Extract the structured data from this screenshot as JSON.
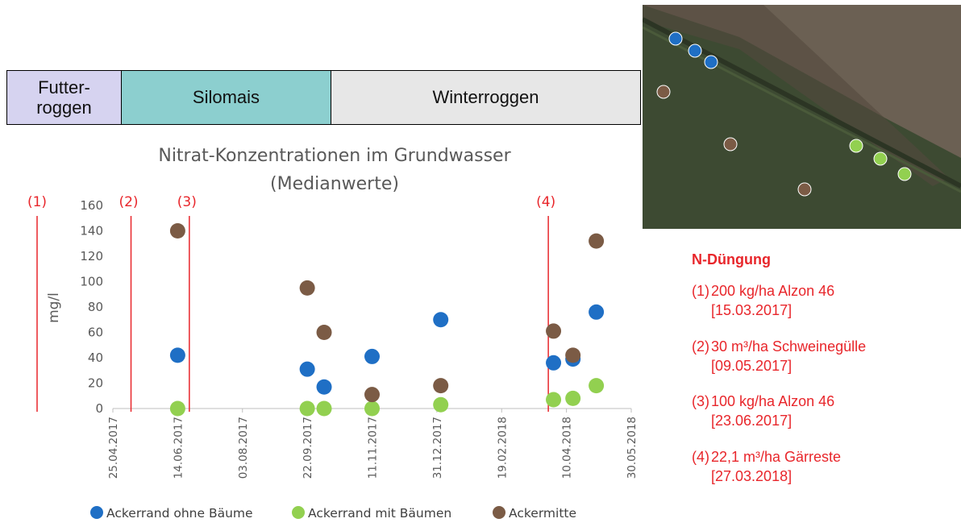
{
  "crops": [
    {
      "label": "Futter-\nroggen"
    },
    {
      "label": "Silomais"
    },
    {
      "label": "Winterroggen"
    }
  ],
  "chart_data": {
    "type": "scatter",
    "title": "Nitrat-Konzentrationen im Grundwasser\n(Medianwerte)",
    "title_lines": [
      "Nitrat-Konzentrationen im Grundwasser",
      "(Medianwerte)"
    ],
    "ylabel": "mg/l",
    "ylim": [
      0,
      160
    ],
    "yticks": [
      0,
      20,
      40,
      60,
      80,
      100,
      120,
      140,
      160
    ],
    "xlim": [
      "2017-04-25",
      "2018-05-30"
    ],
    "xticks": [
      "25.04.2017",
      "14.06.2017",
      "03.08.2017",
      "22.09.2017",
      "11.11.2017",
      "31.12.2017",
      "19.02.2018",
      "10.04.2018",
      "30.05.2018"
    ],
    "grid": false,
    "legend_position": "bottom",
    "series": [
      {
        "name": "Ackerrand ohne Bäume",
        "color": "#1f6fc5",
        "points": [
          [
            "2017-06-14",
            42
          ],
          [
            "2017-09-22",
            31
          ],
          [
            "2017-10-05",
            17
          ],
          [
            "2017-11-11",
            41
          ],
          [
            "2018-01-03",
            70
          ],
          [
            "2018-03-31",
            36
          ],
          [
            "2018-04-15",
            39
          ],
          [
            "2018-05-03",
            76
          ]
        ]
      },
      {
        "name": "Ackerrand mit Bäumen",
        "color": "#92d050",
        "points": [
          [
            "2017-06-14",
            0
          ],
          [
            "2017-09-22",
            0
          ],
          [
            "2017-10-05",
            0
          ],
          [
            "2017-11-11",
            0
          ],
          [
            "2018-01-03",
            3
          ],
          [
            "2018-03-31",
            7
          ],
          [
            "2018-04-15",
            8
          ],
          [
            "2018-05-03",
            18
          ]
        ]
      },
      {
        "name": "Ackermitte",
        "color": "#7b5b45",
        "points": [
          [
            "2017-06-14",
            140
          ],
          [
            "2017-09-22",
            95
          ],
          [
            "2017-10-05",
            60
          ],
          [
            "2017-11-11",
            11
          ],
          [
            "2018-01-03",
            18
          ],
          [
            "2018-03-31",
            61
          ],
          [
            "2018-04-15",
            42
          ],
          [
            "2018-05-03",
            132
          ]
        ]
      }
    ],
    "annotations": [
      {
        "label": "(1)",
        "color": "#e8262b"
      },
      {
        "label": "(2)",
        "date": "2017-05-09",
        "color": "#e8262b"
      },
      {
        "label": "(3)",
        "date": "2017-06-23",
        "color": "#e8262b"
      },
      {
        "label": "(4)",
        "date": "2018-03-27",
        "color": "#e8262b"
      }
    ]
  },
  "fertilization": {
    "title": "N-Düngung",
    "items": [
      {
        "num": "(1)",
        "text": "200 kg/ha Alzon 46",
        "date": "[15.03.2017]"
      },
      {
        "num": "(2)",
        "text": "30 m³/ha Schweinegülle",
        "date": "[09.05.2017]"
      },
      {
        "num": "(3)",
        "text": "100 kg/ha Alzon 46",
        "date": "[23.06.2017]"
      },
      {
        "num": "(4)",
        "text": "22,1 m³/ha Gärreste",
        "date": "[27.03.2018]"
      }
    ]
  },
  "colors": {
    "accent_red": "#e8262b",
    "field_dark": "#3a4a2e",
    "field_light": "#6f6355"
  }
}
